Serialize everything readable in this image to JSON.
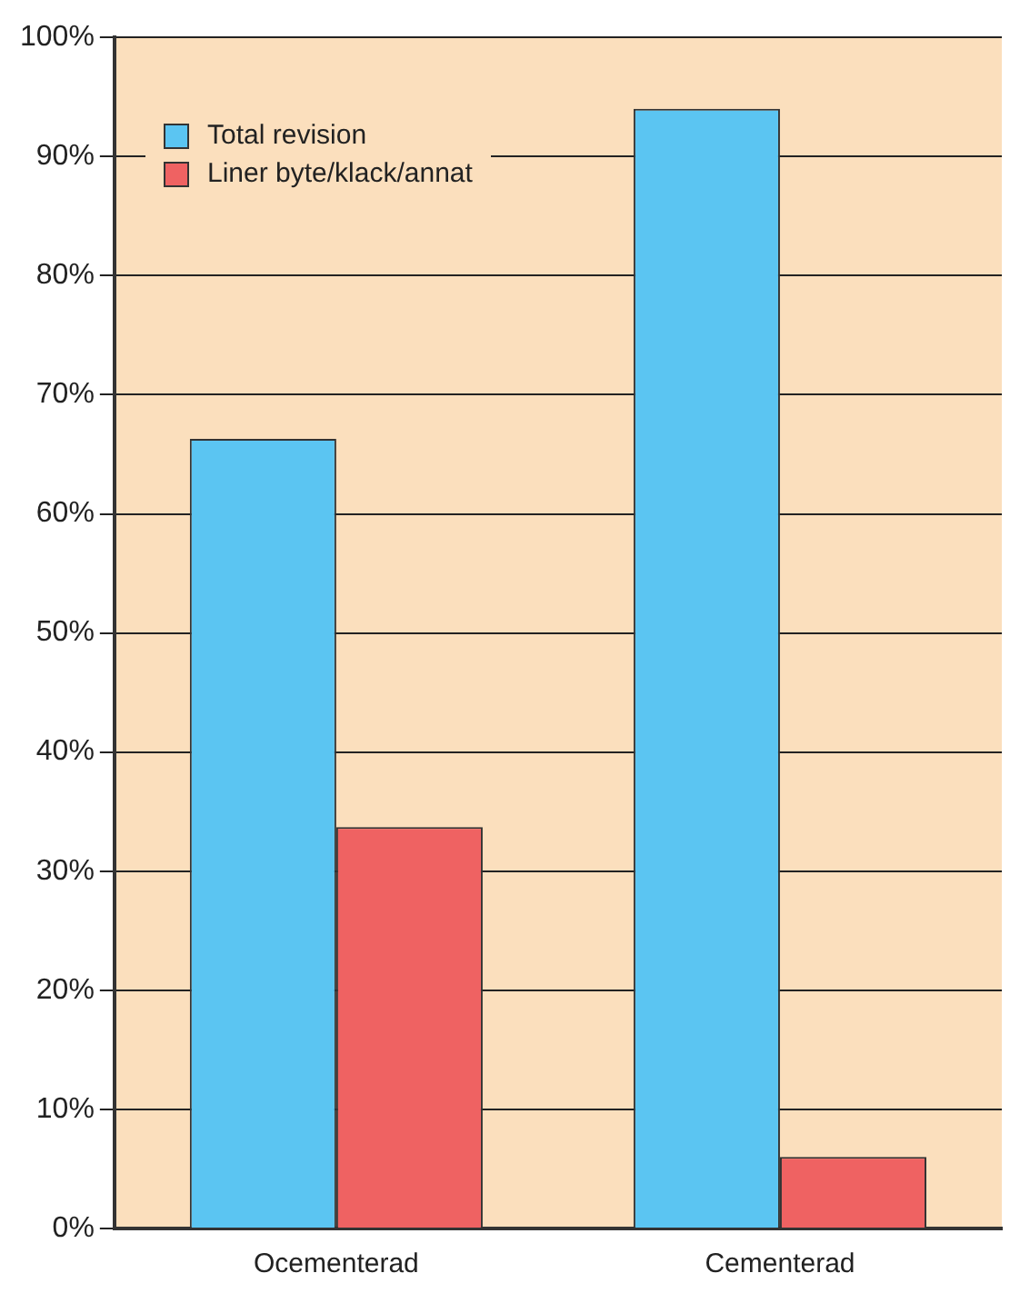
{
  "chart_data": {
    "type": "bar",
    "categories": [
      "Ocementerad",
      "Cementerad"
    ],
    "series": [
      {
        "name": "Total revision",
        "color": "#5bc5f2",
        "values": [
          66.3,
          94
        ]
      },
      {
        "name": "Liner byte/klack/annat",
        "color": "#ef6262",
        "values": [
          33.7,
          6
        ]
      }
    ],
    "ylim": [
      0,
      100
    ],
    "yticks": [
      {
        "value": 0,
        "label": "0%"
      },
      {
        "value": 10,
        "label": "10%"
      },
      {
        "value": 20,
        "label": "20%"
      },
      {
        "value": 30,
        "label": "30%"
      },
      {
        "value": 40,
        "label": "40%"
      },
      {
        "value": 50,
        "label": "50%"
      },
      {
        "value": 60,
        "label": "60%"
      },
      {
        "value": 70,
        "label": "70%"
      },
      {
        "value": 80,
        "label": "80%"
      },
      {
        "value": 90,
        "label": "90%"
      },
      {
        "value": 100,
        "label": "100%"
      }
    ],
    "grid": "y",
    "legend": "top left"
  }
}
